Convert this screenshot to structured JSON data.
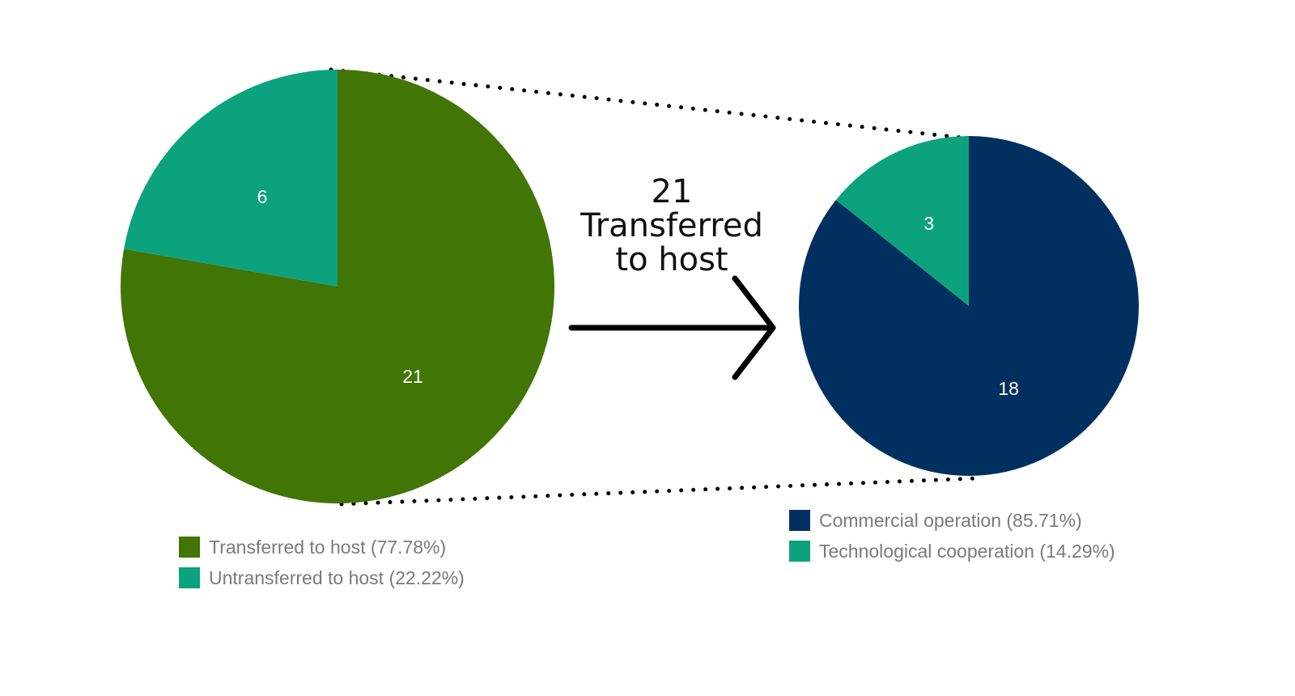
{
  "callout": {
    "line1": "21",
    "line2": "Transferred",
    "line3": "to host"
  },
  "chart_data": [
    {
      "type": "pie",
      "title": "",
      "slices": [
        {
          "label": "Transferred to host",
          "value": 21,
          "legend": "Transferred to host (77.78%)",
          "color": "#417505"
        },
        {
          "label": "Untransferred to host",
          "value": 6,
          "legend": "Untransferred to host (22.22%)",
          "color": "#0ca27e"
        }
      ],
      "legend_position": "bottom"
    },
    {
      "type": "pie",
      "title": "",
      "slices": [
        {
          "label": "Commercial operation",
          "value": 18,
          "legend": "Commercial operation (85.71%)",
          "color": "#003060"
        },
        {
          "label": "Technological cooperation",
          "value": 3,
          "legend": "Technological cooperation (14.29%)",
          "color": "#0ca27e"
        }
      ],
      "legend_position": "bottom"
    }
  ]
}
